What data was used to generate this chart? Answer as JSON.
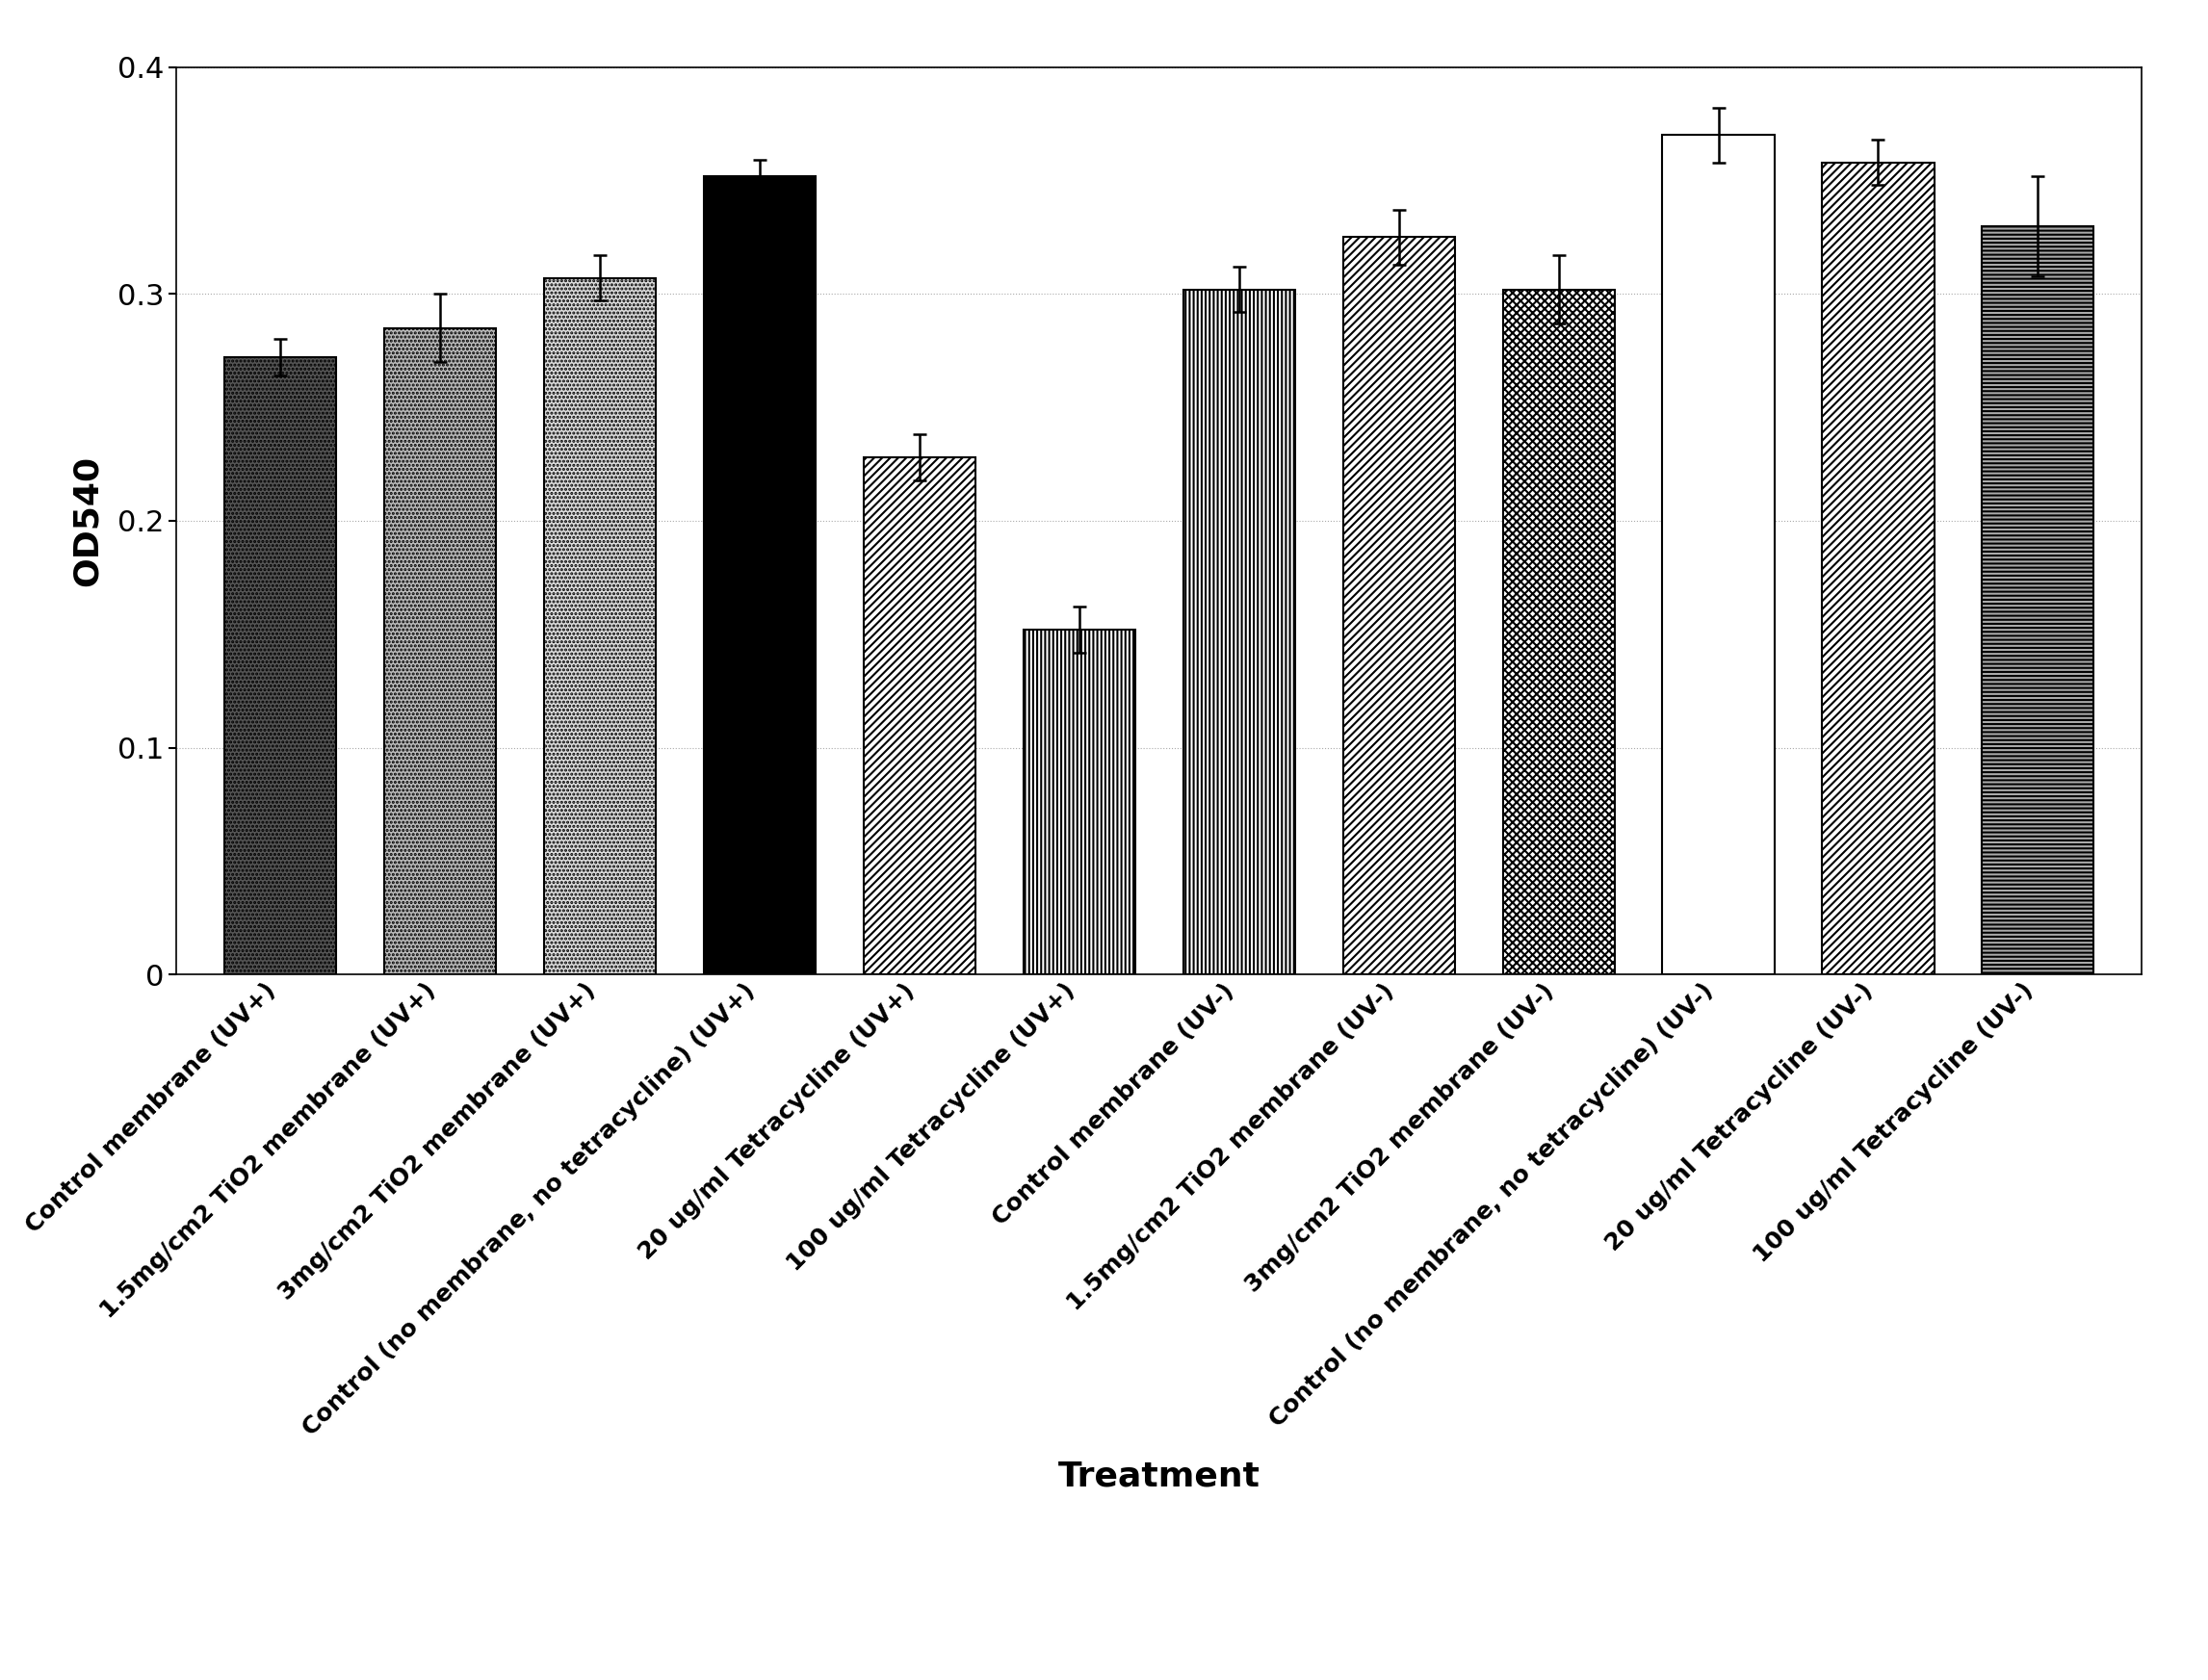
{
  "categories": [
    "Control membrane (UV+)",
    "1.5mg/cm2 TiO2 membrane (UV+)",
    "3mg/cm2 TiO2 membrane (UV+)",
    "Control (no membrane, no tetracycline) (UV+)",
    "20 ug/ml Tetracycline (UV+)",
    "100 ug/ml Tetracycline (UV+)",
    "Control membrane (UV-)",
    "1.5mg/cm2 TiO2 membrane (UV-)",
    "3mg/cm2 TiO2 membrane (UV-)",
    "Control (no membrane, no tetracycline) (UV-)",
    "20 ug/ml Tetracycline (UV-)",
    "100 ug/ml Tetracycline (UV-)"
  ],
  "values": [
    0.272,
    0.285,
    0.307,
    0.352,
    0.228,
    0.152,
    0.302,
    0.325,
    0.302,
    0.37,
    0.358,
    0.33
  ],
  "errors": [
    0.008,
    0.015,
    0.01,
    0.007,
    0.01,
    0.01,
    0.01,
    0.012,
    0.015,
    0.012,
    0.01,
    0.022
  ],
  "ylabel": "OD540",
  "xlabel": "Treatment",
  "ylim": [
    0,
    0.4
  ],
  "yticks": [
    0,
    0.1,
    0.2,
    0.3,
    0.4
  ],
  "ytick_labels": [
    "0",
    "0.1",
    "0.2",
    "0.3",
    "0.4"
  ],
  "bar_width": 0.7,
  "background_color": "#ffffff",
  "axis_label_fontsize": 26,
  "tick_fontsize": 22,
  "xtick_fontsize": 18,
  "hatch_patterns": [
    "....",
    "....",
    "....",
    "",
    "////",
    "||||",
    "||||",
    "////",
    "xxxx",
    "",
    "////",
    "----"
  ],
  "face_colors": [
    "#555555",
    "#bbbbbb",
    "#dddddd",
    "#000000",
    "#ffffff",
    "#ffffff",
    "#ffffff",
    "#ffffff",
    "#ffffff",
    "#ffffff",
    "#ffffff",
    "#aaaaaa"
  ],
  "hatch_colors": [
    "black",
    "black",
    "black",
    "black",
    "black",
    "black",
    "black",
    "black",
    "black",
    "black",
    "black",
    "black"
  ]
}
